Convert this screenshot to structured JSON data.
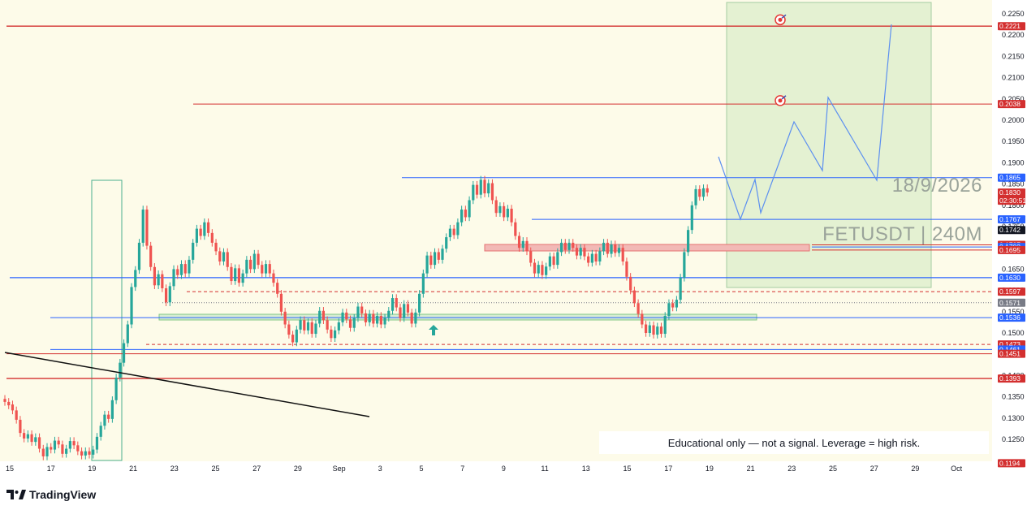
{
  "chart_data": {
    "type": "candlestick",
    "symbol": "FETUSDT | 240M",
    "date_text": "18/9/2026",
    "x_ticks": [
      "15",
      "17",
      "19",
      "21",
      "23",
      "25",
      "27",
      "29",
      "Sep",
      "3",
      "5",
      "7",
      "9",
      "11",
      "13",
      "15",
      "17",
      "19",
      "21",
      "23",
      "25",
      "27",
      "29",
      "Oct"
    ],
    "y_ticks": [
      "0.2250",
      "0.2200",
      "0.2150",
      "0.2100",
      "0.2050",
      "0.2000",
      "0.1950",
      "0.1900",
      "0.1850",
      "0.1800",
      "0.1750",
      "0.1650",
      "0.1600",
      "0.1550",
      "0.1500",
      "0.1450",
      "0.1400",
      "0.1350",
      "0.1300",
      "0.1250"
    ],
    "ylim": [
      0.119,
      0.226
    ],
    "price_levels": [
      {
        "label": "0.2221",
        "value": 0.2221,
        "color": "#d32f2f",
        "style": "solid"
      },
      {
        "label": "0.2038",
        "value": 0.2038,
        "color": "#d32f2f",
        "style": "solid"
      },
      {
        "label": "0.1865",
        "value": 0.1865,
        "color": "#2962ff",
        "style": "solid"
      },
      {
        "label": "0.1830",
        "value": 0.183,
        "color": "#d32f2f",
        "style": "none"
      },
      {
        "label": "0.1767",
        "value": 0.1767,
        "color": "#2962ff",
        "style": "solid"
      },
      {
        "label": "0.1742",
        "value": 0.1742,
        "color": "#131722",
        "style": "none"
      },
      {
        "label": "0.1707",
        "value": 0.1707,
        "color": "#d32f2f",
        "style": "solid"
      },
      {
        "label": "0.1702",
        "value": 0.1702,
        "color": "#2962ff",
        "style": "solid"
      },
      {
        "label": "0.1695",
        "value": 0.1695,
        "color": "#d32f2f",
        "style": "solid"
      },
      {
        "label": "0.1630",
        "value": 0.163,
        "color": "#2962ff",
        "style": "solid"
      },
      {
        "label": "0.1597",
        "value": 0.1597,
        "color": "#d32f2f",
        "style": "dashed"
      },
      {
        "label": "0.1571",
        "value": 0.1571,
        "color": "#787b86",
        "style": "dotted"
      },
      {
        "label": "0.1536",
        "value": 0.1536,
        "color": "#2962ff",
        "style": "solid"
      },
      {
        "label": "0.1473",
        "value": 0.1473,
        "color": "#d32f2f",
        "style": "dashed"
      },
      {
        "label": "0.1461",
        "value": 0.1461,
        "color": "#2962ff",
        "style": "solid"
      },
      {
        "label": "0.1451",
        "value": 0.1451,
        "color": "#d32f2f",
        "style": "solid"
      },
      {
        "label": "0.1393",
        "value": 0.1393,
        "color": "#d32f2f",
        "style": "solid"
      },
      {
        "label": "0.1194",
        "value": 0.1194,
        "color": "#d32f2f",
        "style": "none"
      }
    ],
    "countdown": "02:30:51",
    "candles": [
      {
        "x": 0,
        "o": 0.1345,
        "c": 0.1338
      },
      {
        "x": 1,
        "o": 0.1338,
        "c": 0.133
      },
      {
        "x": 2,
        "o": 0.1332,
        "c": 0.1318
      },
      {
        "x": 3,
        "o": 0.1318,
        "c": 0.1296
      },
      {
        "x": 4,
        "o": 0.1296,
        "c": 0.1265
      },
      {
        "x": 5,
        "o": 0.1265,
        "c": 0.1252
      },
      {
        "x": 6,
        "o": 0.1252,
        "c": 0.1262
      },
      {
        "x": 7,
        "o": 0.1262,
        "c": 0.1244
      },
      {
        "x": 8,
        "o": 0.1244,
        "c": 0.1255
      },
      {
        "x": 9,
        "o": 0.1255,
        "c": 0.1228
      },
      {
        "x": 10,
        "o": 0.1228,
        "c": 0.121
      },
      {
        "x": 11,
        "o": 0.121,
        "c": 0.1232
      },
      {
        "x": 12,
        "o": 0.1232,
        "c": 0.1226
      },
      {
        "x": 13,
        "o": 0.1226,
        "c": 0.1247
      },
      {
        "x": 14,
        "o": 0.1247,
        "c": 0.1238
      },
      {
        "x": 15,
        "o": 0.1238,
        "c": 0.1216
      },
      {
        "x": 16,
        "o": 0.1216,
        "c": 0.1228
      },
      {
        "x": 17,
        "o": 0.1228,
        "c": 0.1246
      },
      {
        "x": 18,
        "o": 0.1246,
        "c": 0.1236
      },
      {
        "x": 19,
        "o": 0.1236,
        "c": 0.1222
      },
      {
        "x": 20,
        "o": 0.1222,
        "c": 0.1212
      },
      {
        "x": 21,
        "o": 0.1212,
        "c": 0.1222
      },
      {
        "x": 22,
        "o": 0.1222,
        "c": 0.1214
      },
      {
        "x": 23,
        "o": 0.1214,
        "c": 0.1226
      },
      {
        "x": 24,
        "o": 0.1226,
        "c": 0.1256
      },
      {
        "x": 25,
        "o": 0.1256,
        "c": 0.1282
      },
      {
        "x": 26,
        "o": 0.1282,
        "c": 0.1308
      },
      {
        "x": 27,
        "o": 0.1308,
        "c": 0.1298
      },
      {
        "x": 28,
        "o": 0.1298,
        "c": 0.1342
      },
      {
        "x": 29,
        "o": 0.1342,
        "c": 0.1395
      },
      {
        "x": 30,
        "o": 0.1395,
        "c": 0.143
      },
      {
        "x": 31,
        "o": 0.143,
        "c": 0.1476
      },
      {
        "x": 32,
        "o": 0.1476,
        "c": 0.152
      },
      {
        "x": 33,
        "o": 0.152,
        "c": 0.1608
      },
      {
        "x": 34,
        "o": 0.1608,
        "c": 0.1648
      },
      {
        "x": 35,
        "o": 0.1648,
        "c": 0.1712
      },
      {
        "x": 36,
        "o": 0.1712,
        "c": 0.179
      },
      {
        "x": 37,
        "o": 0.179,
        "c": 0.1705
      },
      {
        "x": 38,
        "o": 0.1705,
        "c": 0.1655
      },
      {
        "x": 39,
        "o": 0.1655,
        "c": 0.1612
      },
      {
        "x": 40,
        "o": 0.1612,
        "c": 0.1638
      },
      {
        "x": 41,
        "o": 0.1638,
        "c": 0.1605
      },
      {
        "x": 42,
        "o": 0.1605,
        "c": 0.1572
      },
      {
        "x": 43,
        "o": 0.1572,
        "c": 0.161
      },
      {
        "x": 44,
        "o": 0.161,
        "c": 0.165
      },
      {
        "x": 45,
        "o": 0.165,
        "c": 0.1636
      },
      {
        "x": 46,
        "o": 0.1636,
        "c": 0.1662
      },
      {
        "x": 47,
        "o": 0.1662,
        "c": 0.164
      },
      {
        "x": 48,
        "o": 0.164,
        "c": 0.1672
      },
      {
        "x": 49,
        "o": 0.1672,
        "c": 0.1712
      },
      {
        "x": 50,
        "o": 0.1712,
        "c": 0.1745
      },
      {
        "x": 51,
        "o": 0.1745,
        "c": 0.1728
      },
      {
        "x": 52,
        "o": 0.1728,
        "c": 0.176
      },
      {
        "x": 53,
        "o": 0.176,
        "c": 0.1735
      },
      {
        "x": 54,
        "o": 0.1735,
        "c": 0.1712
      },
      {
        "x": 55,
        "o": 0.1712,
        "c": 0.1692
      },
      {
        "x": 56,
        "o": 0.1692,
        "c": 0.1668
      },
      {
        "x": 57,
        "o": 0.1668,
        "c": 0.169
      },
      {
        "x": 58,
        "o": 0.169,
        "c": 0.1655
      },
      {
        "x": 59,
        "o": 0.1655,
        "c": 0.1622
      },
      {
        "x": 60,
        "o": 0.1622,
        "c": 0.1652
      },
      {
        "x": 61,
        "o": 0.1652,
        "c": 0.1618
      },
      {
        "x": 62,
        "o": 0.1618,
        "c": 0.164
      },
      {
        "x": 63,
        "o": 0.164,
        "c": 0.1672
      },
      {
        "x": 64,
        "o": 0.1672,
        "c": 0.165
      },
      {
        "x": 65,
        "o": 0.165,
        "c": 0.1686
      },
      {
        "x": 66,
        "o": 0.1686,
        "c": 0.166
      },
      {
        "x": 67,
        "o": 0.166,
        "c": 0.164
      },
      {
        "x": 68,
        "o": 0.164,
        "c": 0.1662
      },
      {
        "x": 69,
        "o": 0.1662,
        "c": 0.164
      },
      {
        "x": 70,
        "o": 0.164,
        "c": 0.1618
      },
      {
        "x": 71,
        "o": 0.1618,
        "c": 0.1592
      },
      {
        "x": 72,
        "o": 0.1592,
        "c": 0.155
      },
      {
        "x": 73,
        "o": 0.155,
        "c": 0.152
      },
      {
        "x": 74,
        "o": 0.152,
        "c": 0.1496
      },
      {
        "x": 75,
        "o": 0.1496,
        "c": 0.1478
      },
      {
        "x": 76,
        "o": 0.1478,
        "c": 0.1508
      },
      {
        "x": 77,
        "o": 0.1508,
        "c": 0.153
      },
      {
        "x": 78,
        "o": 0.153,
        "c": 0.1506
      },
      {
        "x": 79,
        "o": 0.1506,
        "c": 0.1525
      },
      {
        "x": 80,
        "o": 0.1525,
        "c": 0.1498
      },
      {
        "x": 81,
        "o": 0.1498,
        "c": 0.1522
      },
      {
        "x": 82,
        "o": 0.1522,
        "c": 0.1552
      },
      {
        "x": 83,
        "o": 0.1552,
        "c": 0.153
      },
      {
        "x": 84,
        "o": 0.153,
        "c": 0.1508
      },
      {
        "x": 85,
        "o": 0.1508,
        "c": 0.1488
      },
      {
        "x": 86,
        "o": 0.1488,
        "c": 0.1506
      },
      {
        "x": 87,
        "o": 0.1506,
        "c": 0.1525
      },
      {
        "x": 88,
        "o": 0.1525,
        "c": 0.1548
      },
      {
        "x": 89,
        "o": 0.1548,
        "c": 0.1532
      },
      {
        "x": 90,
        "o": 0.1532,
        "c": 0.1512
      },
      {
        "x": 91,
        "o": 0.1512,
        "c": 0.1535
      },
      {
        "x": 92,
        "o": 0.1535,
        "c": 0.1562
      },
      {
        "x": 93,
        "o": 0.1562,
        "c": 0.1546
      },
      {
        "x": 94,
        "o": 0.1546,
        "c": 0.1525
      },
      {
        "x": 95,
        "o": 0.1525,
        "c": 0.1545
      },
      {
        "x": 96,
        "o": 0.1545,
        "c": 0.1522
      },
      {
        "x": 97,
        "o": 0.1522,
        "c": 0.154
      },
      {
        "x": 98,
        "o": 0.154,
        "c": 0.152
      },
      {
        "x": 99,
        "o": 0.152,
        "c": 0.1536
      },
      {
        "x": 100,
        "o": 0.1536,
        "c": 0.1552
      },
      {
        "x": 101,
        "o": 0.1552,
        "c": 0.1582
      },
      {
        "x": 102,
        "o": 0.1582,
        "c": 0.156
      },
      {
        "x": 103,
        "o": 0.156,
        "c": 0.1535
      },
      {
        "x": 104,
        "o": 0.1535,
        "c": 0.1568
      },
      {
        "x": 105,
        "o": 0.1568,
        "c": 0.1548
      },
      {
        "x": 106,
        "o": 0.1548,
        "c": 0.1522
      },
      {
        "x": 107,
        "o": 0.1522,
        "c": 0.1548
      },
      {
        "x": 108,
        "o": 0.1548,
        "c": 0.1592
      },
      {
        "x": 109,
        "o": 0.1592,
        "c": 0.164
      },
      {
        "x": 110,
        "o": 0.164,
        "c": 0.1682
      },
      {
        "x": 111,
        "o": 0.1682,
        "c": 0.166
      },
      {
        "x": 112,
        "o": 0.166,
        "c": 0.169
      },
      {
        "x": 113,
        "o": 0.169,
        "c": 0.1672
      },
      {
        "x": 114,
        "o": 0.1672,
        "c": 0.1698
      },
      {
        "x": 115,
        "o": 0.1698,
        "c": 0.1725
      },
      {
        "x": 116,
        "o": 0.1725,
        "c": 0.1745
      },
      {
        "x": 117,
        "o": 0.1745,
        "c": 0.173
      },
      {
        "x": 118,
        "o": 0.173,
        "c": 0.176
      },
      {
        "x": 119,
        "o": 0.176,
        "c": 0.179
      },
      {
        "x": 120,
        "o": 0.179,
        "c": 0.1772
      },
      {
        "x": 121,
        "o": 0.1772,
        "c": 0.1812
      },
      {
        "x": 122,
        "o": 0.1812,
        "c": 0.1848
      },
      {
        "x": 123,
        "o": 0.1848,
        "c": 0.1825
      },
      {
        "x": 124,
        "o": 0.1825,
        "c": 0.186
      },
      {
        "x": 125,
        "o": 0.186,
        "c": 0.1828
      },
      {
        "x": 126,
        "o": 0.1828,
        "c": 0.1852
      },
      {
        "x": 127,
        "o": 0.1852,
        "c": 0.1812
      },
      {
        "x": 128,
        "o": 0.1812,
        "c": 0.1782
      },
      {
        "x": 129,
        "o": 0.1782,
        "c": 0.1798
      },
      {
        "x": 130,
        "o": 0.1798,
        "c": 0.1772
      },
      {
        "x": 131,
        "o": 0.1772,
        "c": 0.1792
      },
      {
        "x": 132,
        "o": 0.1792,
        "c": 0.176
      },
      {
        "x": 133,
        "o": 0.176,
        "c": 0.1728
      },
      {
        "x": 134,
        "o": 0.1728,
        "c": 0.17
      },
      {
        "x": 135,
        "o": 0.17,
        "c": 0.1716
      },
      {
        "x": 136,
        "o": 0.1716,
        "c": 0.1692
      },
      {
        "x": 137,
        "o": 0.1692,
        "c": 0.1665
      },
      {
        "x": 138,
        "o": 0.1665,
        "c": 0.164
      },
      {
        "x": 139,
        "o": 0.164,
        "c": 0.166
      },
      {
        "x": 140,
        "o": 0.166,
        "c": 0.1636
      },
      {
        "x": 141,
        "o": 0.1636,
        "c": 0.1656
      },
      {
        "x": 142,
        "o": 0.1656,
        "c": 0.168
      },
      {
        "x": 143,
        "o": 0.168,
        "c": 0.166
      },
      {
        "x": 144,
        "o": 0.166,
        "c": 0.169
      },
      {
        "x": 145,
        "o": 0.169,
        "c": 0.1712
      },
      {
        "x": 146,
        "o": 0.1712,
        "c": 0.1695
      },
      {
        "x": 147,
        "o": 0.1695,
        "c": 0.1712
      },
      {
        "x": 148,
        "o": 0.1712,
        "c": 0.17
      },
      {
        "x": 149,
        "o": 0.17,
        "c": 0.1682
      },
      {
        "x": 150,
        "o": 0.1682,
        "c": 0.17
      },
      {
        "x": 151,
        "o": 0.17,
        "c": 0.168
      },
      {
        "x": 152,
        "o": 0.168,
        "c": 0.1665
      },
      {
        "x": 153,
        "o": 0.1665,
        "c": 0.1686
      },
      {
        "x": 154,
        "o": 0.1686,
        "c": 0.1668
      },
      {
        "x": 155,
        "o": 0.1668,
        "c": 0.1692
      },
      {
        "x": 156,
        "o": 0.1692,
        "c": 0.1712
      },
      {
        "x": 157,
        "o": 0.1712,
        "c": 0.1686
      },
      {
        "x": 158,
        "o": 0.1686,
        "c": 0.1708
      },
      {
        "x": 159,
        "o": 0.1708,
        "c": 0.1688
      },
      {
        "x": 160,
        "o": 0.1688,
        "c": 0.17
      },
      {
        "x": 161,
        "o": 0.17,
        "c": 0.1668
      },
      {
        "x": 162,
        "o": 0.1668,
        "c": 0.1632
      },
      {
        "x": 163,
        "o": 0.1632,
        "c": 0.16
      },
      {
        "x": 164,
        "o": 0.16,
        "c": 0.157
      },
      {
        "x": 165,
        "o": 0.157,
        "c": 0.1545
      },
      {
        "x": 166,
        "o": 0.1545,
        "c": 0.152
      },
      {
        "x": 167,
        "o": 0.152,
        "c": 0.15
      },
      {
        "x": 168,
        "o": 0.15,
        "c": 0.1518
      },
      {
        "x": 169,
        "o": 0.1518,
        "c": 0.1496
      },
      {
        "x": 170,
        "o": 0.1496,
        "c": 0.1515
      },
      {
        "x": 171,
        "o": 0.1515,
        "c": 0.1498
      },
      {
        "x": 172,
        "o": 0.1498,
        "c": 0.154
      },
      {
        "x": 173,
        "o": 0.154,
        "c": 0.157
      },
      {
        "x": 174,
        "o": 0.157,
        "c": 0.156
      },
      {
        "x": 175,
        "o": 0.156,
        "c": 0.1578
      },
      {
        "x": 176,
        "o": 0.1578,
        "c": 0.163
      },
      {
        "x": 177,
        "o": 0.163,
        "c": 0.169
      },
      {
        "x": 178,
        "o": 0.169,
        "c": 0.1742
      },
      {
        "x": 179,
        "o": 0.1742,
        "c": 0.18
      },
      {
        "x": 180,
        "o": 0.18,
        "c": 0.1838
      },
      {
        "x": 181,
        "o": 0.1838,
        "c": 0.182
      },
      {
        "x": 182,
        "o": 0.182,
        "c": 0.184
      },
      {
        "x": 183,
        "o": 0.184,
        "c": 0.183
      }
    ],
    "annotations": [
      {
        "type": "target-icon",
        "value": 0.2236
      },
      {
        "type": "target-icon",
        "value": 0.2046
      }
    ]
  },
  "disclaimer": "Educational only — not a signal. Leverage  = high risk.",
  "branding": "TradingView",
  "colors": {
    "background": "#fdfbe9",
    "up": "#26a69a",
    "down": "#ef5350",
    "target_zone": "#e2f0d0",
    "support_zone": "#d6ecd2",
    "resistance_zone": "#f2b9b6",
    "projection": "#5b8ff0",
    "trendline": "#111111"
  }
}
